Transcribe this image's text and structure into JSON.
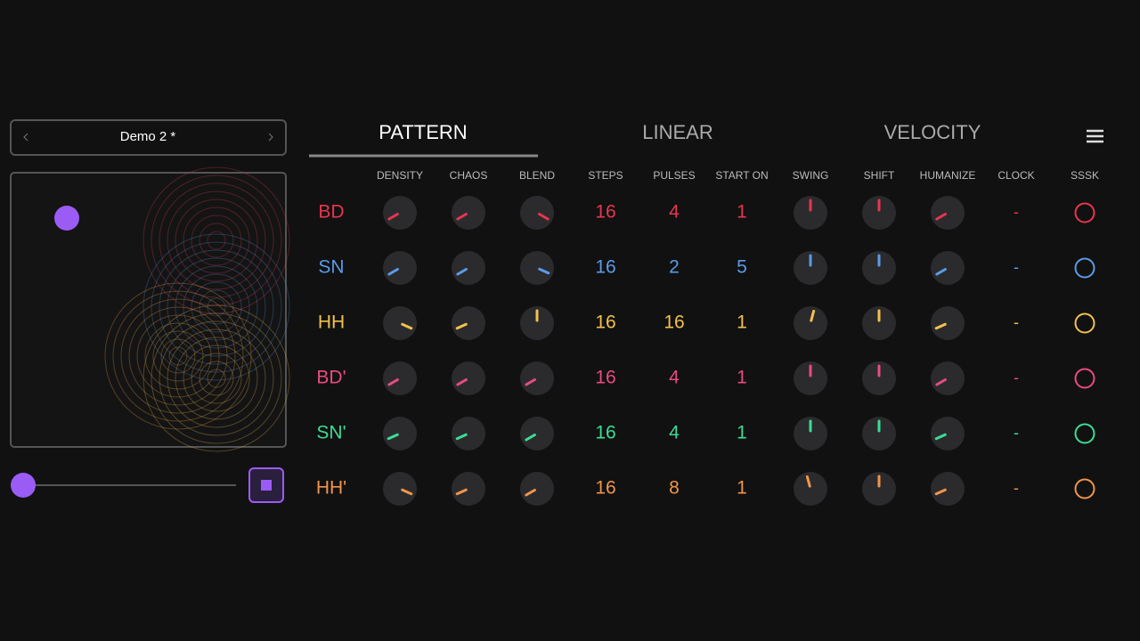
{
  "preset": {
    "name": "Demo 2 *"
  },
  "tabs": [
    "PATTERN",
    "LINEAR",
    "VELOCITY"
  ],
  "columns": [
    "DENSITY",
    "CHAOS",
    "BLEND",
    "STEPS",
    "PULSES",
    "START ON",
    "SWING",
    "SHIFT",
    "HUMANIZE",
    "CLOCK",
    "SSSK"
  ],
  "rows": [
    {
      "name": "BD",
      "color": "#e8364f",
      "cells": [
        0.1,
        0.1,
        0.9,
        16,
        4,
        1,
        0.5,
        0.5,
        0.1,
        "-"
      ]
    },
    {
      "name": "SN",
      "color": "#5b9be8",
      "cells": [
        0.1,
        0.1,
        0.88,
        16,
        2,
        5,
        0.5,
        0.5,
        0.1,
        "-"
      ]
    },
    {
      "name": "HH",
      "color": "#f2c14e",
      "cells": [
        0.88,
        0.12,
        0.5,
        16,
        16,
        1,
        0.55,
        0.5,
        0.12,
        "-"
      ]
    },
    {
      "name": "BD'",
      "color": "#e94b82",
      "cells": [
        0.1,
        0.1,
        0.1,
        16,
        4,
        1,
        0.5,
        0.5,
        0.1,
        "-"
      ]
    },
    {
      "name": "SN'",
      "color": "#3ddc97",
      "cells": [
        0.12,
        0.12,
        0.1,
        16,
        4,
        1,
        0.5,
        0.5,
        0.12,
        "-"
      ]
    },
    {
      "name": "HH'",
      "color": "#f0954a",
      "cells": [
        0.88,
        0.12,
        0.1,
        16,
        8,
        1,
        0.45,
        0.5,
        0.12,
        "-"
      ]
    }
  ]
}
